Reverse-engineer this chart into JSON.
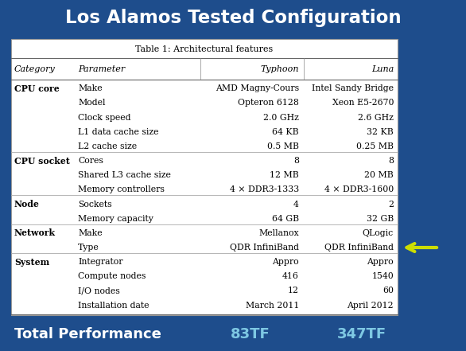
{
  "title": "Los Alamos Tested Configuration",
  "table_title": "Table 1: Architectural features",
  "bg_color": "#1e4d8c",
  "table_bg": "#ffffff",
  "title_color": "#ffffff",
  "footer_value_color": "#7ec8e3",
  "col_headers": [
    "Category",
    "Parameter",
    "Typhoon",
    "Luna"
  ],
  "rows": [
    [
      "CPU core",
      "Make",
      "AMD Magny-Cours",
      "Intel Sandy Bridge"
    ],
    [
      "",
      "Model",
      "Opteron 6128",
      "Xeon E5-2670"
    ],
    [
      "",
      "Clock speed",
      "2.0 GHz",
      "2.6 GHz"
    ],
    [
      "",
      "L1 data cache size",
      "64 KB",
      "32 KB"
    ],
    [
      "",
      "L2 cache size",
      "0.5 MB",
      "0.25 MB"
    ],
    [
      "CPU socket",
      "Cores",
      "8",
      "8"
    ],
    [
      "",
      "Shared L3 cache size",
      "12 MB",
      "20 MB"
    ],
    [
      "",
      "Memory controllers",
      "4 × DDR3-1333",
      "4 × DDR3-1600"
    ],
    [
      "Node",
      "Sockets",
      "4",
      "2"
    ],
    [
      "",
      "Memory capacity",
      "64 GB",
      "32 GB"
    ],
    [
      "Network",
      "Make",
      "Mellanox",
      "QLogic"
    ],
    [
      "",
      "Type",
      "QDR InfiniBand",
      "QDR InfiniBand"
    ],
    [
      "System",
      "Integrator",
      "Appro",
      "Appro"
    ],
    [
      "",
      "Compute nodes",
      "416",
      "1540"
    ],
    [
      "",
      "I/O nodes",
      "12",
      "60"
    ],
    [
      "",
      "Installation date",
      "March 2011",
      "April 2012"
    ]
  ],
  "footer_label": "Total Performance",
  "footer_typhoon": "83TF",
  "footer_luna": "347TF",
  "section_starters": [
    "CPU socket",
    "Node",
    "Network",
    "System"
  ],
  "arrow_row": 11,
  "arrow_color": "#ccdd00"
}
